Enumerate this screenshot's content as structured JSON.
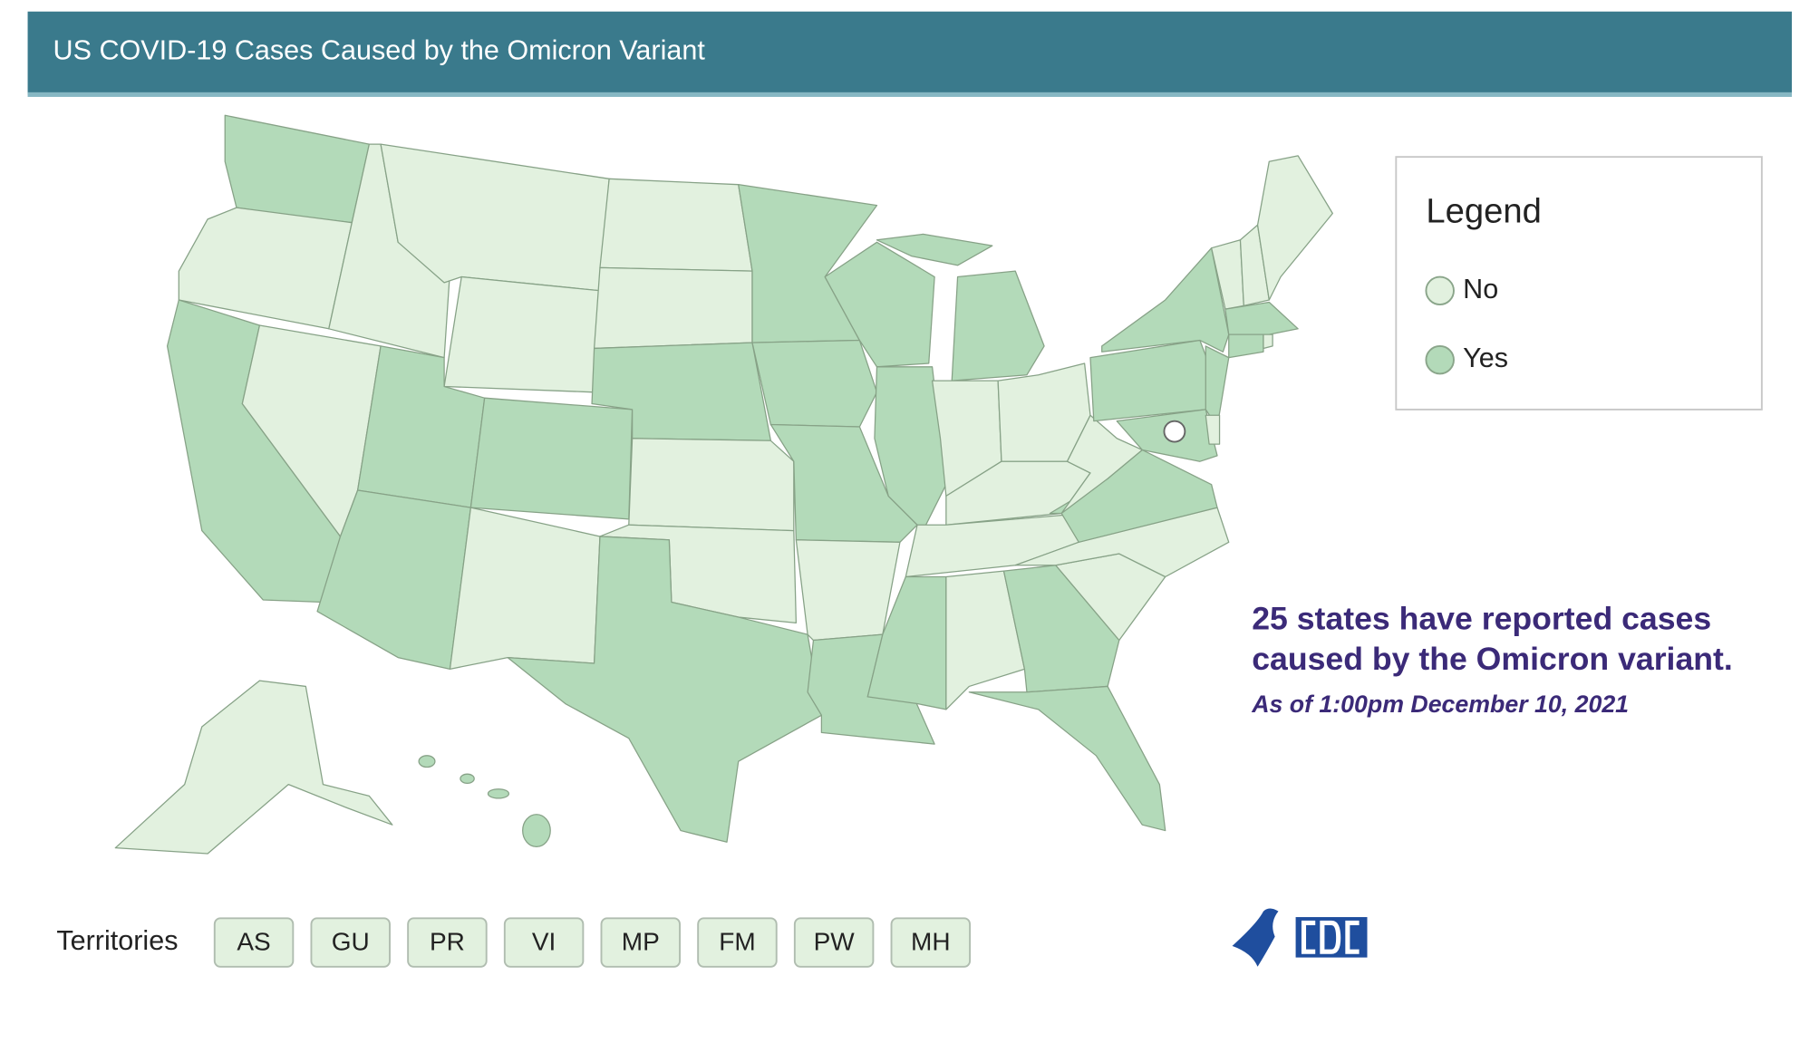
{
  "header": {
    "title": "US COVID-19 Cases Caused by the Omicron Variant"
  },
  "legend": {
    "title": "Legend",
    "items": [
      {
        "label": "No",
        "color": "#e2f1df"
      },
      {
        "label": "Yes",
        "color": "#b3dab9"
      }
    ]
  },
  "annotation": {
    "line1": "25 states have reported cases",
    "line2": "caused by the Omicron variant.",
    "date": "As of 1:00pm December 10, 2021"
  },
  "territories": {
    "label": "Territories",
    "buttons": [
      "AS",
      "GU",
      "PR",
      "VI",
      "MP",
      "FM",
      "PW",
      "MH"
    ]
  }
}
